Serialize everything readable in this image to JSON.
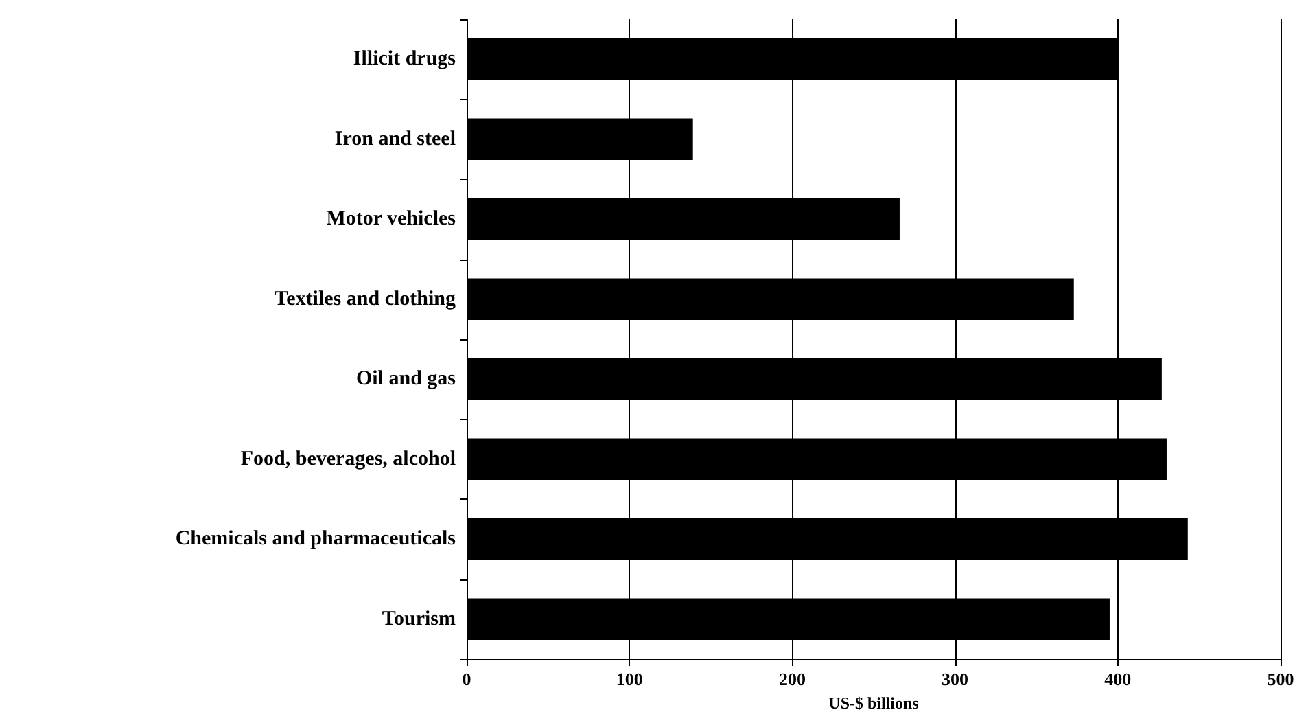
{
  "chart_data": {
    "type": "bar",
    "orientation": "horizontal",
    "xlabel": "US-$ billions",
    "categories": [
      "Illicit drugs",
      "Iron and steel",
      "Motor vehicles",
      "Textiles and clothing",
      "Oil and gas",
      "Food, beverages, alcohol",
      "Chemicals and pharmaceuticals",
      "Tourism"
    ],
    "values": [
      400,
      139,
      266,
      373,
      427,
      430,
      443,
      395
    ],
    "color": "#000000",
    "xlim": [
      0,
      500
    ],
    "xticks": [
      0,
      100,
      200,
      300,
      400,
      500
    ],
    "grid": "x"
  }
}
